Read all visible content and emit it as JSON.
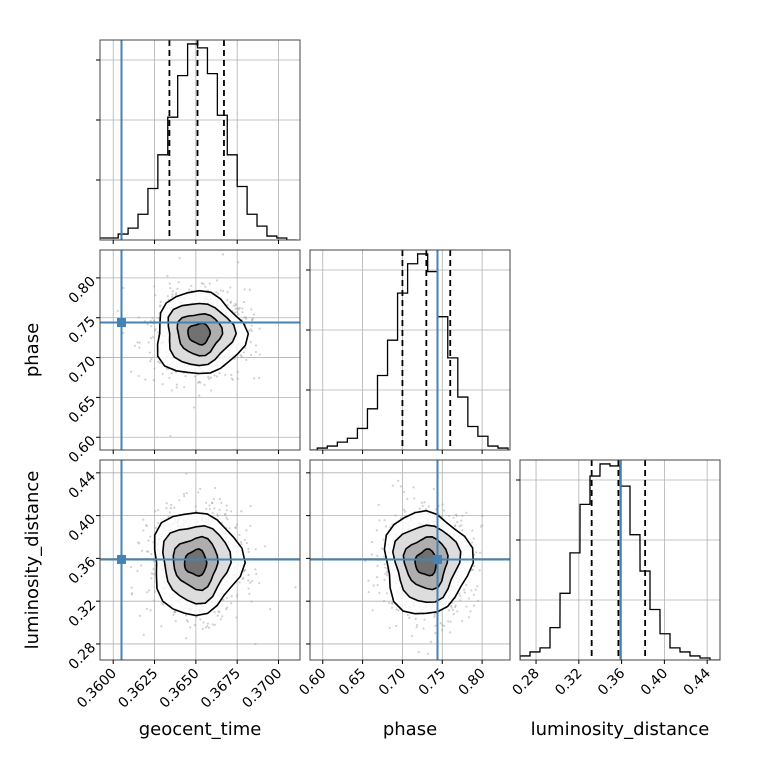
{
  "chart_data": {
    "type": "corner",
    "parameters": [
      {
        "name": "geocent_time",
        "label": "geocent_time",
        "range": [
          0.3592,
          0.3713
        ],
        "ticks": [
          "0.3600",
          "0.3625",
          "0.3650",
          "0.3675",
          "0.3700"
        ],
        "truth": 0.3605,
        "quantiles": [
          0.3634,
          0.3651,
          0.3667
        ]
      },
      {
        "name": "phase",
        "label": "phase",
        "range": [
          0.584,
          0.835
        ],
        "ticks": [
          "0.60",
          "0.65",
          "0.70",
          "0.75",
          "0.80"
        ],
        "truth": 0.744,
        "quantiles": [
          0.7,
          0.73,
          0.76
        ]
      },
      {
        "name": "luminosity_distance",
        "label": "luminosity_distance",
        "range": [
          0.265,
          0.452
        ],
        "ticks": [
          "0.28",
          "0.32",
          "0.36",
          "0.40",
          "0.44"
        ],
        "truth": 0.359,
        "quantiles": [
          0.332,
          0.357,
          0.382
        ]
      }
    ],
    "histograms": [
      {
        "param": "geocent_time",
        "bins": [
          0.3594,
          0.36,
          0.3606,
          0.3612,
          0.3618,
          0.3624,
          0.363,
          0.3636,
          0.3642,
          0.3648,
          0.3654,
          0.366,
          0.3666,
          0.3672,
          0.3678,
          0.3684,
          0.369,
          0.3696,
          0.3702,
          0.3708
        ],
        "counts": [
          1,
          1,
          3,
          6,
          13,
          26,
          43,
          62,
          83,
          99,
          97,
          84,
          63,
          43,
          27,
          13,
          7,
          2,
          1,
          0
        ]
      },
      {
        "param": "phase",
        "bins": [
          0.5868,
          0.5994,
          0.612,
          0.6246,
          0.6372,
          0.6498,
          0.6624,
          0.675,
          0.6876,
          0.7002,
          0.7128,
          0.7254,
          0.738,
          0.7506,
          0.7632,
          0.7758,
          0.7884,
          0.801,
          0.8136,
          0.8262
        ],
        "counts": [
          0,
          1,
          2,
          4,
          6,
          11,
          21,
          38,
          56,
          80,
          95,
          100,
          91,
          68,
          47,
          27,
          12,
          7,
          2,
          1
        ]
      },
      {
        "param": "luminosity_distance",
        "bins": [
          0.2697,
          0.279,
          0.2884,
          0.2977,
          0.3071,
          0.3164,
          0.3258,
          0.3351,
          0.3445,
          0.3538,
          0.3632,
          0.3725,
          0.3819,
          0.3912,
          0.4006,
          0.4099,
          0.4193,
          0.4286,
          0.438,
          0.4473
        ],
        "counts": [
          2,
          4,
          6,
          16,
          33,
          53,
          77,
          91,
          97,
          96,
          86,
          62,
          44,
          25,
          13,
          6,
          4,
          2,
          1,
          0
        ]
      }
    ],
    "pairs": [
      {
        "x": "geocent_time",
        "y": "phase",
        "center": [
          0.3652,
          0.73
        ],
        "sigma": [
          0.00134,
          0.026
        ]
      },
      {
        "x": "geocent_time",
        "y": "luminosity_distance",
        "center": [
          0.365,
          0.356
        ],
        "sigma": [
          0.00134,
          0.024
        ]
      },
      {
        "x": "phase",
        "y": "luminosity_distance",
        "center": [
          0.73,
          0.356
        ],
        "sigma": [
          0.027,
          0.024
        ]
      }
    ],
    "contour_levels": [
      0.5,
      1.0,
      1.5,
      2.0
    ],
    "colors": {
      "truth": "#4682b4",
      "quantile": "#000000",
      "grid": "#b0b0b0",
      "scatter": "#9a9a9a"
    },
    "grid": true
  }
}
